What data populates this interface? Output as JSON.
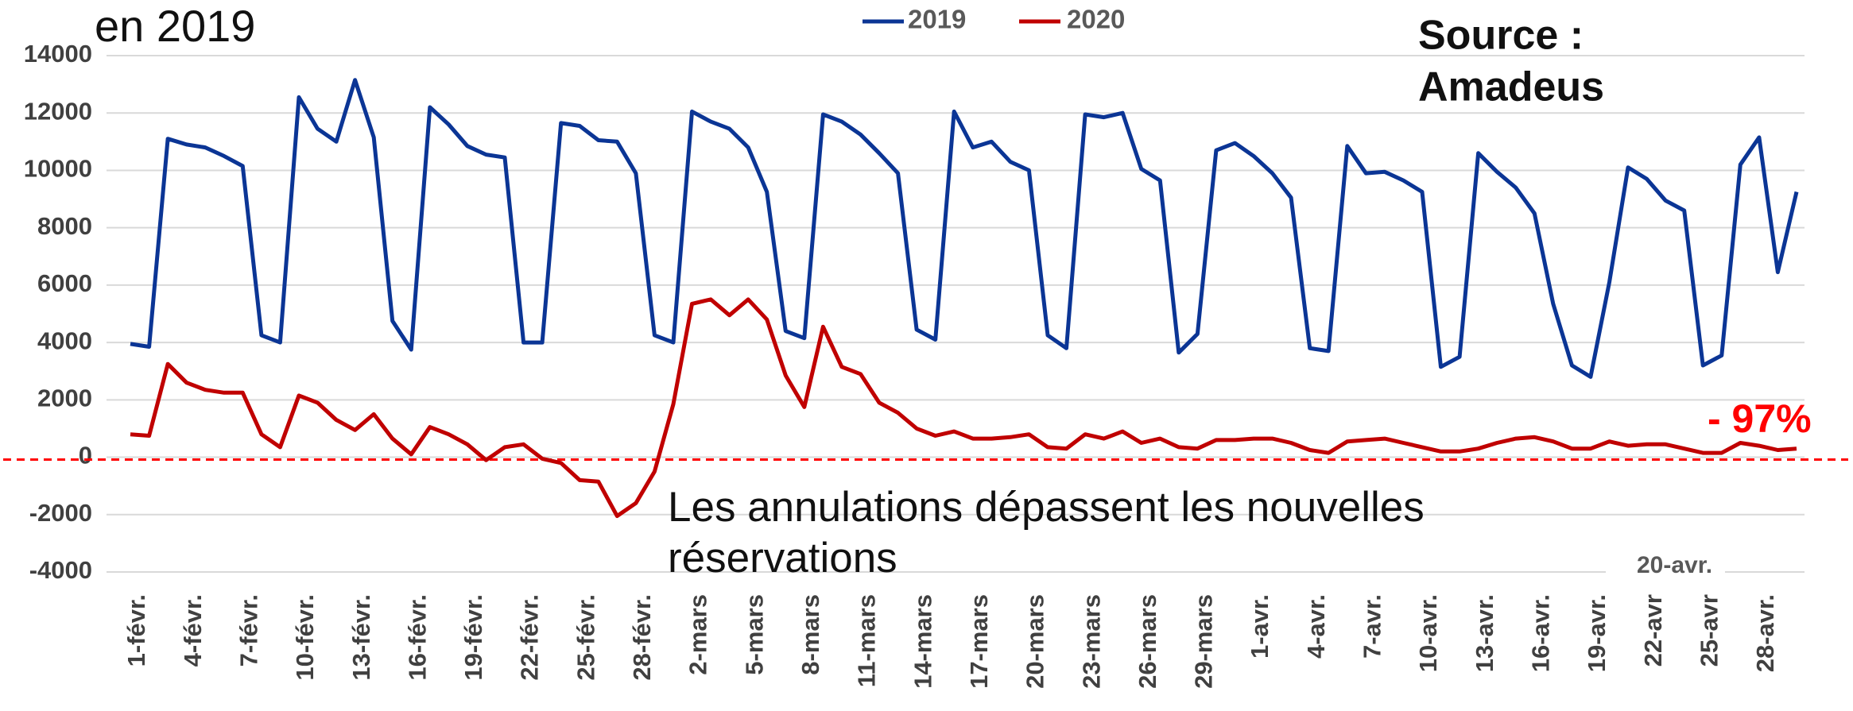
{
  "chart_data": {
    "type": "line",
    "title": "en 2019",
    "source_lines": [
      "Source :",
      "Amadeus"
    ],
    "annotation_lines": [
      "Les annulations dépassent les nouvelles",
      "réservations"
    ],
    "end_label": "- 97%",
    "end_label_color": "#ff0000",
    "floating_label": "20-avr.",
    "categories": [
      "1-févr.",
      null,
      null,
      "4-févr.",
      null,
      null,
      "7-févr.",
      null,
      null,
      "10-févr.",
      null,
      null,
      "13-févr.",
      null,
      null,
      "16-févr.",
      null,
      null,
      "19-févr.",
      null,
      null,
      "22-févr.",
      null,
      null,
      "25-févr.",
      null,
      null,
      "28-févr.",
      null,
      null,
      "2-mars",
      null,
      null,
      "5-mars",
      null,
      null,
      "8-mars",
      null,
      null,
      "11-mars",
      null,
      null,
      "14-mars",
      null,
      null,
      "17-mars",
      null,
      null,
      "20-mars",
      null,
      null,
      "23-mars",
      null,
      null,
      "26-mars",
      null,
      null,
      "29-mars",
      null,
      null,
      "1-avr.",
      null,
      null,
      "4-avr.",
      null,
      null,
      "7-avr.",
      null,
      null,
      "10-avr.",
      null,
      null,
      "13-avr.",
      null,
      null,
      "16-avr.",
      null,
      null,
      "19-avr.",
      null,
      null,
      "22-avr",
      null,
      null,
      "25-avr",
      null,
      null,
      "28-avr.",
      null,
      null
    ],
    "series": [
      {
        "name": "2019",
        "color": "#0b3595",
        "values": [
          3950,
          3850,
          11100,
          10900,
          10800,
          10500,
          10150,
          4250,
          4000,
          12550,
          11450,
          11000,
          13150,
          11150,
          4750,
          3750,
          12200,
          11600,
          10850,
          10550,
          10450,
          4000,
          4000,
          11650,
          11550,
          11050,
          11000,
          9900,
          4250,
          4000,
          12050,
          11700,
          11450,
          10800,
          9250,
          4400,
          4150,
          11950,
          11700,
          11250,
          10600,
          9900,
          4450,
          4100,
          12050,
          10800,
          11000,
          10300,
          10000,
          4250,
          3800,
          11950,
          11850,
          12000,
          10050,
          9650,
          3650,
          4300,
          10700,
          10950,
          10500,
          9900,
          9050,
          3800,
          3700,
          10850,
          9900,
          9950,
          9650,
          9250,
          3150,
          3500,
          10600,
          9950,
          9400,
          8500,
          5350,
          3200,
          2800,
          6100,
          10100,
          9700,
          8950,
          8600,
          3200,
          3550,
          10200,
          11150,
          6450,
          9250
        ]
      },
      {
        "name": "2020",
        "color": "#c00000",
        "values": [
          800,
          750,
          3250,
          2600,
          2350,
          2250,
          2250,
          800,
          350,
          2150,
          1900,
          1300,
          950,
          1500,
          650,
          100,
          1050,
          800,
          450,
          -100,
          350,
          450,
          -50,
          -200,
          -800,
          -850,
          -2050,
          -1600,
          -500,
          1850,
          5350,
          5500,
          4950,
          5500,
          4800,
          2850,
          1750,
          4550,
          3150,
          2900,
          1900,
          1550,
          1000,
          750,
          900,
          650,
          650,
          700,
          800,
          350,
          300,
          800,
          650,
          900,
          500,
          650,
          350,
          300,
          600,
          600,
          650,
          650,
          500,
          250,
          150,
          550,
          600,
          650,
          500,
          350,
          200,
          200,
          300,
          500,
          650,
          700,
          550,
          300,
          300,
          550,
          400,
          450,
          450,
          300,
          150,
          150,
          500,
          400,
          250,
          300
        ]
      }
    ],
    "ylim": [
      -4000,
      14000
    ],
    "yticks": [
      -4000,
      -2000,
      0,
      2000,
      4000,
      6000,
      8000,
      10000,
      12000,
      14000
    ],
    "grid": true,
    "reference_line": {
      "value": 0,
      "color": "#ff0000"
    }
  }
}
